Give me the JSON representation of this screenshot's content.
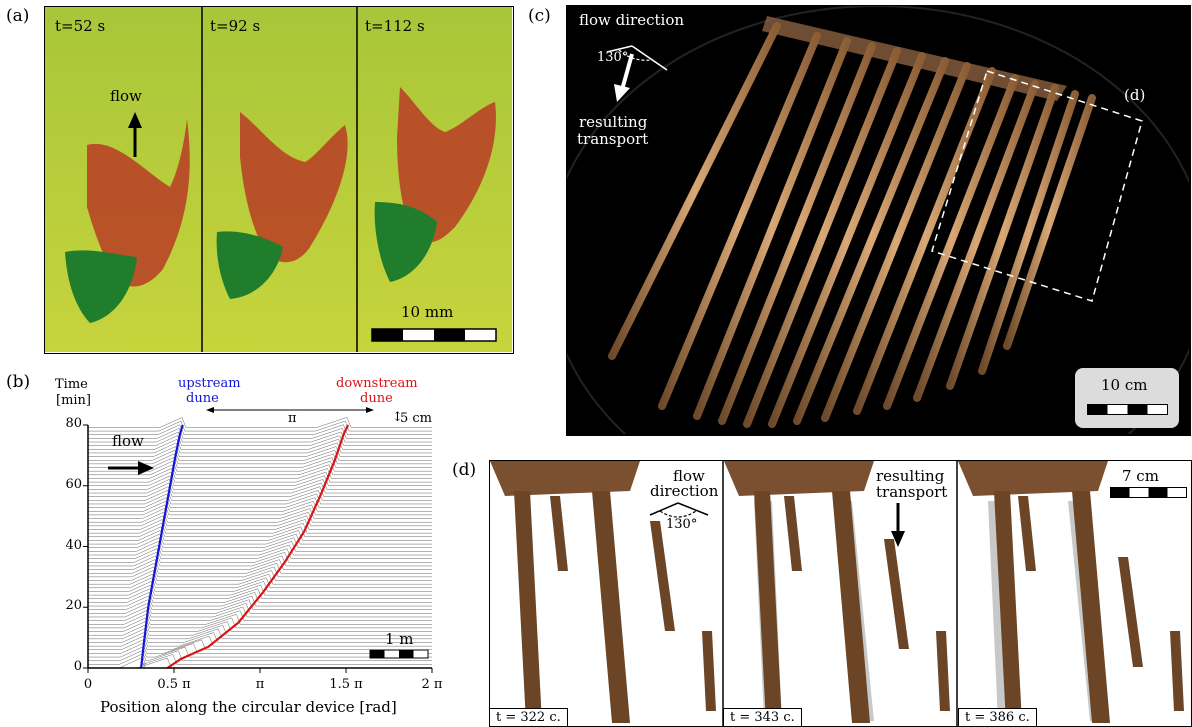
{
  "panel_a": {
    "label": "(a)",
    "frames": [
      {
        "time": "t=52 s"
      },
      {
        "time": "t=92 s"
      },
      {
        "time": "t=112 s"
      }
    ],
    "flow_label": "flow",
    "scale_label": "10 mm"
  },
  "panel_b": {
    "label": "(b)",
    "y_title_1": "Time",
    "y_title_2": "[min]",
    "upstream_1": "upstream",
    "upstream_2": "dune",
    "downstream_1": "downstream",
    "downstream_2": "dune",
    "separation": "π",
    "height_scale": "5 cm",
    "flow_label": "flow",
    "scale_label": "1 m",
    "x_axis_label": "Position along the circular device [rad]",
    "y_ticks": [
      "0",
      "20",
      "40",
      "60",
      "80"
    ],
    "x_ticks": [
      "0",
      "0.5 π",
      "π",
      "1.5 π",
      "2 π"
    ]
  },
  "panel_c": {
    "label": "(c)",
    "flow_direction": "flow direction",
    "angle": "130°",
    "transport_1": "resulting",
    "transport_2": "transport",
    "inset_label": "(d)",
    "scale_label": "10 cm"
  },
  "panel_d": {
    "label": "(d)",
    "flow_1": "flow",
    "flow_2": "direction",
    "angle": "130°",
    "transport_1": "resulting",
    "transport_2": "transport",
    "scale_label": "7 cm",
    "times": [
      "t = 322 c.",
      "t = 343 c.",
      "t = 386 c."
    ]
  },
  "chart_data": {
    "type": "line",
    "xlabel": "Position along the circular device [rad]",
    "ylabel": "Time [min]",
    "xlim": [
      0,
      6.283
    ],
    "ylim": [
      0,
      80
    ],
    "x_tick_labels": [
      "0",
      "0.5 π",
      "π",
      "1.5 π",
      "2 π"
    ],
    "y_tick_labels": [
      "0",
      "20",
      "40",
      "60",
      "80"
    ],
    "series": [
      {
        "name": "upstream dune",
        "color": "#1515d8",
        "x": [
          0.97,
          1.02,
          1.1,
          1.2,
          1.3,
          1.4,
          1.5,
          1.6,
          1.68,
          1.73
        ],
        "y": [
          0,
          8,
          20,
          30,
          40,
          50,
          60,
          70,
          77,
          80
        ]
      },
      {
        "name": "downstream dune",
        "color": "#d81515",
        "x": [
          1.45,
          1.7,
          2.2,
          2.75,
          3.2,
          3.6,
          3.95,
          4.25,
          4.5,
          4.67,
          4.75
        ],
        "y": [
          0,
          3,
          7,
          15,
          25,
          35,
          45,
          57,
          68,
          77,
          80
        ]
      }
    ]
  }
}
